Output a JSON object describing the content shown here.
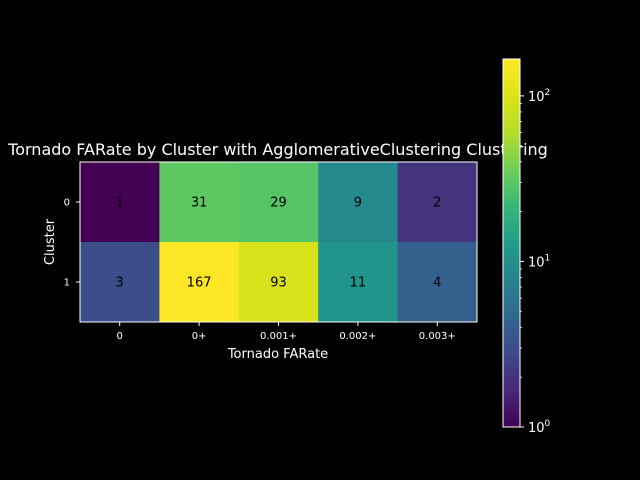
{
  "chart_data": {
    "type": "heatmap",
    "title": "Tornado FARate by Cluster with AgglomerativeClustering Clustering",
    "xlabel": "Tornado FARate",
    "ylabel": "Cluster",
    "x_categories": [
      "0",
      "0+",
      "0.001+",
      "0.002+",
      "0.003+"
    ],
    "y_categories": [
      "0",
      "1"
    ],
    "values": [
      [
        1,
        31,
        29,
        9,
        2
      ],
      [
        3,
        167,
        93,
        11,
        4
      ]
    ],
    "color_scale": "log",
    "colormap": "viridis",
    "color_range": [
      1,
      167
    ],
    "colorbar": {
      "ticks": [
        {
          "value": 1,
          "base": "10",
          "exp": "0"
        },
        {
          "value": 10,
          "base": "10",
          "exp": "1"
        },
        {
          "value": 100,
          "base": "10",
          "exp": "2"
        }
      ]
    },
    "background": "#000000",
    "foreground": "#ffffff",
    "annotation_color": "#000000"
  }
}
